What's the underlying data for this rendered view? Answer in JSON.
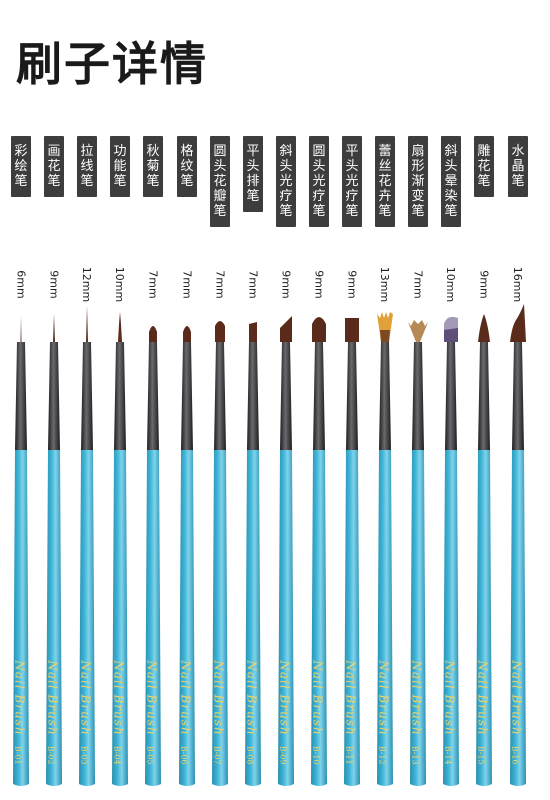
{
  "title": "刷子详情",
  "brand": "Nail Brush",
  "colors": {
    "handle": "#3fb6d8",
    "ferrule": "#3a3a3c",
    "bristle": "#5a2b1a",
    "text_gold": "#f2d267",
    "tag_bg": "#3d3d3d"
  },
  "brushes": [
    {
      "name": "彩绘笔",
      "size": "6mm",
      "code": "B-01",
      "tip": "liner-thin"
    },
    {
      "name": "画花笔",
      "size": "9mm",
      "code": "B-02",
      "tip": "liner"
    },
    {
      "name": "拉线笔",
      "size": "12mm",
      "code": "B-03",
      "tip": "liner-long"
    },
    {
      "name": "功能笔",
      "size": "10mm",
      "code": "B-04",
      "tip": "round"
    },
    {
      "name": "秋菊笔",
      "size": "7mm",
      "code": "B-05",
      "tip": "short"
    },
    {
      "name": "格纹笔",
      "size": "7mm",
      "code": "B-06",
      "tip": "short"
    },
    {
      "name": "圆头花瓣笔",
      "size": "7mm",
      "code": "B-07",
      "tip": "oval"
    },
    {
      "name": "平头排笔",
      "size": "7mm",
      "code": "B-08",
      "tip": "flat"
    },
    {
      "name": "斜头光疗笔",
      "size": "9mm",
      "code": "B-09",
      "tip": "angled"
    },
    {
      "name": "圆头光疗笔",
      "size": "9mm",
      "code": "B-10",
      "tip": "oval-wide"
    },
    {
      "name": "平头光疗笔",
      "size": "9mm",
      "code": "B-11",
      "tip": "flat-wide"
    },
    {
      "name": "蕾丝花卉笔",
      "size": "13mm",
      "code": "B-12",
      "tip": "fan-gold"
    },
    {
      "name": "扇形渐变笔",
      "size": "7mm",
      "code": "B-13",
      "tip": "fan"
    },
    {
      "name": "斜头晕染笔",
      "size": "10mm",
      "code": "B-14",
      "tip": "angled-purple"
    },
    {
      "name": "雕花笔",
      "size": "9mm",
      "code": "B-15",
      "tip": "cone"
    },
    {
      "name": "水晶笔",
      "size": "16mm",
      "code": "B-16",
      "tip": "crystal"
    }
  ]
}
